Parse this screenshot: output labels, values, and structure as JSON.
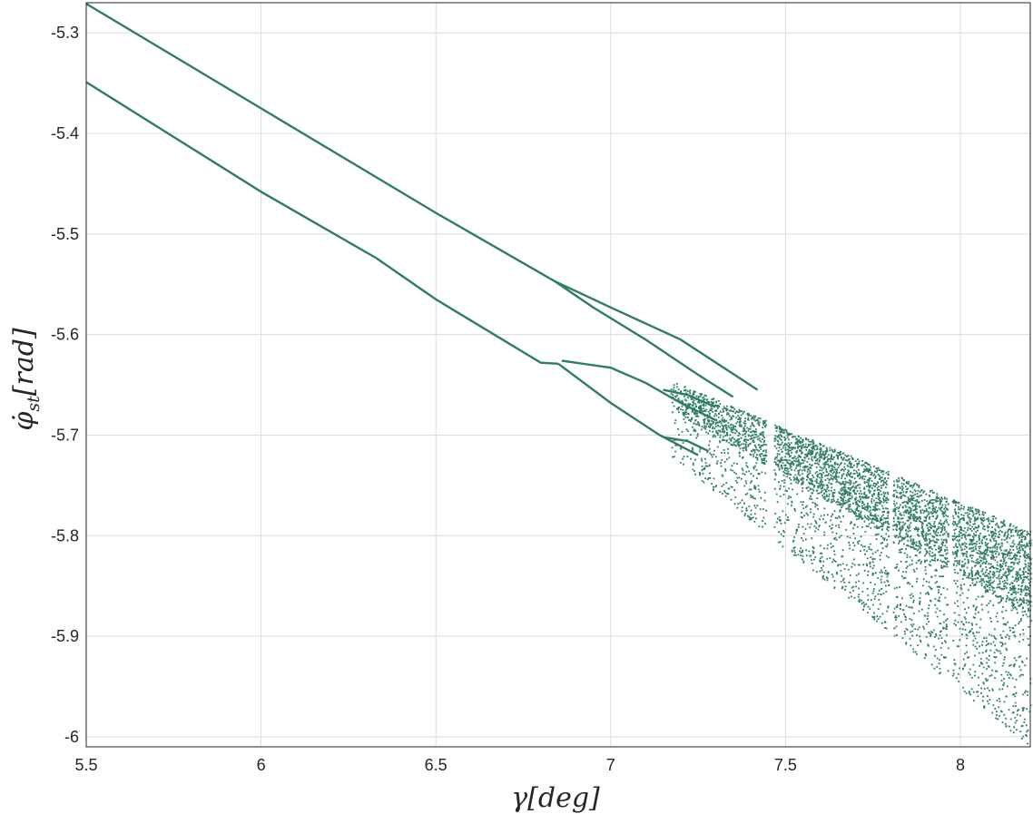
{
  "chart_data": {
    "type": "scatter",
    "title": "",
    "xlabel": "γ[deg]",
    "xlabel_parts": {
      "symbol": "γ",
      "unit": "[deg]"
    },
    "ylabel": "φ̇st[rad]",
    "ylabel_parts": {
      "symbol": "φ̇",
      "subscript": "st",
      "unit": "[rad]"
    },
    "xlim": [
      5.5,
      8.2
    ],
    "ylim": [
      -6.01,
      -5.27
    ],
    "xticks": [
      5.5,
      6,
      6.5,
      7,
      7.5,
      8
    ],
    "xtick_labels": [
      "5.5",
      "6",
      "6.5",
      "7",
      "7.5",
      "8"
    ],
    "yticks": [
      -5.3,
      -5.4,
      -5.5,
      -5.6,
      -5.7,
      -5.8,
      -5.9,
      -6
    ],
    "ytick_labels": [
      "-5.3",
      "-5.4",
      "-5.5",
      "-5.6",
      "-5.7",
      "-5.8",
      "-5.9",
      "-6"
    ],
    "grid": true,
    "legend": "none",
    "color": "#2e7d64",
    "series": [
      {
        "values": [
          [
            5.5,
            -5.271
          ],
          [
            6.0,
            -5.375
          ],
          [
            6.5,
            -5.479
          ],
          [
            6.84,
            -5.547
          ],
          [
            7.0,
            -5.573
          ],
          [
            7.2,
            -5.605
          ],
          [
            7.42,
            -5.655
          ]
        ]
      },
      {
        "values": [
          [
            5.5,
            -5.349
          ],
          [
            6.0,
            -5.458
          ],
          [
            6.33,
            -5.524
          ],
          [
            6.5,
            -5.565
          ],
          [
            6.8,
            -5.628
          ],
          [
            6.85,
            -5.629
          ]
        ]
      },
      {
        "values": [
          [
            6.84,
            -5.547
          ],
          [
            6.95,
            -5.573
          ],
          [
            7.1,
            -5.605
          ],
          [
            7.25,
            -5.64
          ],
          [
            7.35,
            -5.662
          ]
        ]
      },
      {
        "values": [
          [
            6.86,
            -5.626
          ],
          [
            7.0,
            -5.633
          ],
          [
            7.1,
            -5.648
          ],
          [
            7.2,
            -5.668
          ],
          [
            7.3,
            -5.685
          ]
        ]
      },
      {
        "values": [
          [
            6.85,
            -5.629
          ],
          [
            7.0,
            -5.668
          ],
          [
            7.14,
            -5.7
          ],
          [
            7.25,
            -5.72
          ]
        ]
      },
      {
        "values": [
          [
            7.15,
            -5.655
          ],
          [
            7.22,
            -5.66
          ],
          [
            7.3,
            -5.672
          ]
        ]
      },
      {
        "values": [
          [
            7.15,
            -5.702
          ],
          [
            7.22,
            -5.706
          ],
          [
            7.28,
            -5.716
          ]
        ]
      }
    ],
    "chaotic_region": {
      "x_start": 7.17,
      "x_end": 8.2,
      "band_lower_start": -5.72,
      "band_lower_end": -6.01,
      "band_upper_start": -5.645,
      "band_upper_end": -5.795,
      "dense_band_lower_start": -5.675,
      "dense_band_lower_end": -5.88,
      "periodic_windows_x": [
        7.45,
        7.46,
        7.8,
        7.97
      ]
    }
  }
}
